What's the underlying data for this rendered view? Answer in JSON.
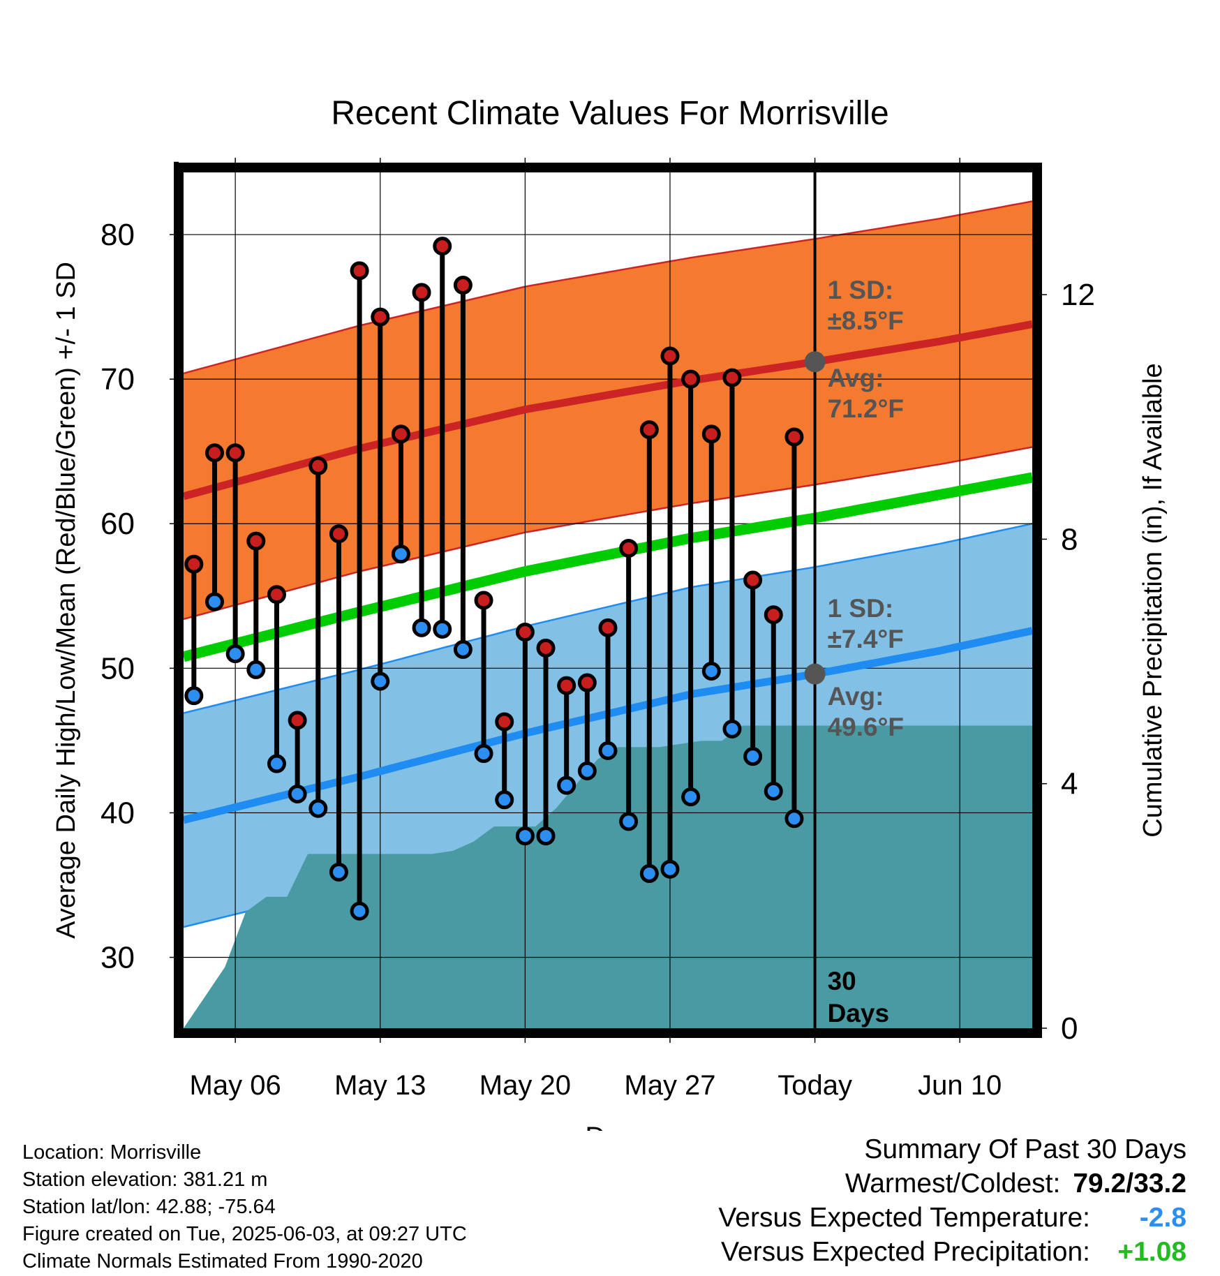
{
  "chart_data": {
    "type": "line",
    "title": "Recent Climate Values For Morrisville",
    "xlabel": "Day",
    "ylabel": "Average Daily High/Low/Mean (Red/Blue/Green) +/- 1 SD",
    "y2label": "Cumulative Precipitation (in), If Available",
    "ylim": [
      25.1,
      84.3
    ],
    "y2lim": [
      0,
      14
    ],
    "xlim": [
      -0.5,
      40.5
    ],
    "yticks": [
      30,
      40,
      50,
      60,
      70,
      80
    ],
    "y2ticks": [
      0,
      4,
      8,
      12
    ],
    "x_ticks": [
      {
        "day": 2,
        "label": "May 06"
      },
      {
        "day": 9,
        "label": "May 13"
      },
      {
        "day": 16,
        "label": "May 20"
      },
      {
        "day": 23,
        "label": "May 27"
      },
      {
        "day": 30,
        "label": "Today"
      },
      {
        "day": 37,
        "label": "Jun 10"
      }
    ],
    "today_day": 30,
    "today_label_line1": "30",
    "today_label_line2": "Days",
    "normal_high": {
      "days": [
        -0.5,
        8,
        16,
        24,
        30,
        36,
        40.5
      ],
      "avg": [
        61.9,
        65.2,
        67.9,
        69.9,
        71.2,
        72.6,
        73.8
      ],
      "sd": 8.5
    },
    "normal_low": {
      "days": [
        -0.5,
        8,
        16,
        24,
        30,
        36,
        40.5
      ],
      "avg": [
        39.5,
        42.5,
        45.5,
        48.2,
        49.6,
        51.2,
        52.6
      ],
      "sd": 7.4
    },
    "normal_mean": {
      "days": [
        -0.5,
        8,
        16,
        24,
        30,
        36,
        40.5
      ],
      "values": [
        50.8,
        53.9,
        56.7,
        59.0,
        60.4,
        62.0,
        63.2
      ]
    },
    "series": [
      {
        "name": "High",
        "color": "#c81e1e",
        "values": [
          57.2,
          64.9,
          64.9,
          58.8,
          55.1,
          46.4,
          64.0,
          59.3,
          77.5,
          74.3,
          66.2,
          76.0,
          79.2,
          76.5,
          54.7,
          46.3,
          52.5,
          51.4,
          48.8,
          49.0,
          52.8,
          58.3,
          66.5,
          71.6,
          70.0,
          66.2,
          70.1,
          56.1,
          53.7,
          66.0
        ]
      },
      {
        "name": "Low",
        "color": "#1e8cf0",
        "values": [
          48.1,
          54.6,
          51.0,
          49.9,
          43.4,
          41.3,
          40.3,
          35.9,
          33.2,
          49.1,
          57.9,
          52.8,
          52.7,
          51.3,
          44.1,
          40.9,
          38.4,
          38.4,
          41.9,
          42.9,
          44.3,
          39.4,
          35.8,
          36.1,
          41.1,
          49.8,
          45.8,
          43.9,
          41.5,
          39.6
        ]
      },
      {
        "name": "Cumulative Precipitation",
        "color": "#4a9aa4",
        "axis": "y2",
        "x": [
          -0.5,
          0.5,
          1.5,
          2.5,
          3.5,
          4.5,
          5.5,
          6.5,
          7.5,
          8.5,
          9.5,
          10.5,
          11.5,
          12.5,
          13.5,
          14.5,
          15.5,
          16.5,
          17.5,
          18.5,
          19.5,
          20.5,
          21.5,
          22.5,
          23.5,
          24.5,
          25.5,
          26.5,
          27.5,
          28.5,
          29.5,
          40.5
        ],
        "values": [
          0,
          0.5,
          1.0,
          1.9,
          2.15,
          2.15,
          2.85,
          2.85,
          2.85,
          2.85,
          2.85,
          2.85,
          2.85,
          2.9,
          3.05,
          3.3,
          3.3,
          3.3,
          3.6,
          4.0,
          4.4,
          4.6,
          4.6,
          4.6,
          4.65,
          4.7,
          4.7,
          4.95,
          4.95,
          4.95,
          4.95,
          4.95
        ]
      }
    ],
    "annotations": {
      "high_sd_line1": "1 SD:",
      "high_sd_line2": "±8.5°F",
      "high_avg_line1": "Avg:",
      "high_avg_line2": "71.2°F",
      "low_sd_line1": "1 SD:",
      "low_sd_line2": "±7.4°F",
      "low_avg_line1": "Avg:",
      "low_avg_line2": "49.6°F"
    },
    "colors": {
      "high_band": "#f47a30",
      "high_line": "#cc2424",
      "low_band": "#82c0e6",
      "low_line": "#1e8cf0",
      "mean_line": "#00cc00",
      "precip": "#4a9aa4",
      "annotation": "#555555",
      "high_dot": "#c81e1e",
      "low_dot": "#2b8ef0"
    }
  },
  "info": {
    "location": "Location: Morrisville",
    "elevation": "Station elevation: 381.21 m",
    "latlon": "Station lat/lon: 42.88; -75.64",
    "created": "Figure created on Tue, 2025-06-03, at 09:27 UTC",
    "normals": "Climate Normals Estimated From 1990-2020"
  },
  "summary": {
    "heading": "Summary Of Past 30 Days",
    "warmest_label": "Warmest/Coldest:",
    "warmest_value": "79.2/33.2",
    "temp_label": "Versus Expected Temperature:",
    "temp_value": "-2.8",
    "temp_color": "#2b8ef0",
    "precip_label": "Versus Expected Precipitation:",
    "precip_value": "+1.08",
    "precip_color": "#22bb22"
  }
}
